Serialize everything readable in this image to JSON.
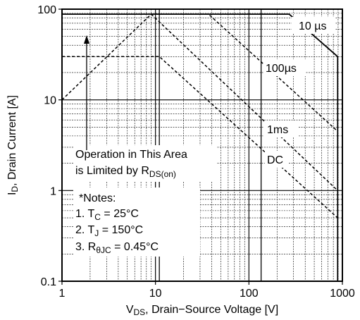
{
  "chart_data": {
    "type": "line",
    "title": "",
    "xscale": "log",
    "yscale": "log",
    "xlim": [
      1,
      1000
    ],
    "ylim": [
      0.1,
      100
    ],
    "grid": true,
    "xlabel": {
      "prefix": "V",
      "sub": "DS",
      "suffix": ", Drain−Source Voltage [V]"
    },
    "ylabel": {
      "prefix": "I",
      "sub": "D",
      "suffix": ", Drain Current [A]"
    },
    "xticks": [
      {
        "value": 1,
        "label": "1"
      },
      {
        "value": 10,
        "label": "10"
      },
      {
        "value": 100,
        "label": "100"
      },
      {
        "value": 1000,
        "label": "1000"
      }
    ],
    "yticks": [
      {
        "value": 0.1,
        "label": "0.1"
      },
      {
        "value": 1,
        "label": "1"
      },
      {
        "value": 10,
        "label": "10"
      },
      {
        "value": 100,
        "label": "100"
      }
    ],
    "series": [
      {
        "name": "10 µs",
        "style": "solid",
        "points": [
          [
            1,
            88
          ],
          [
            270,
            88
          ],
          [
            890,
            30
          ],
          [
            890,
            0.1
          ]
        ]
      },
      {
        "name": "100 µs",
        "style": "dashed",
        "points": [
          [
            1,
            10
          ],
          [
            9,
            88
          ],
          [
            37,
            88
          ],
          [
            890,
            4.5
          ]
        ]
      },
      {
        "name": "1ms",
        "style": "dashed",
        "points": [
          [
            9,
            88
          ],
          [
            890,
            1.0
          ]
        ]
      },
      {
        "name": "DC",
        "style": "dashed",
        "points": [
          [
            1,
            30
          ],
          [
            11,
            30
          ],
          [
            890,
            0.5
          ]
        ]
      }
    ],
    "annotations": {
      "label_10us": {
        "pre": "10",
        "unit": " µs"
      },
      "label_100us": {
        "pre": "100",
        "unit": "µs"
      },
      "label_1ms": "1ms",
      "label_dc": "DC",
      "operation_line1": "Operation in This Area",
      "operation_line2_pre": "is Limited by R",
      "operation_line2_sub": "DS(on)",
      "notes_title": "*Notes:",
      "note1_pre": "1. T",
      "note1_sub": "C",
      "note1_post": " = 25°C",
      "note2_pre": "2. T",
      "note2_sub": "J",
      "note2_post": " = 150°C",
      "note3_pre": "3. R",
      "note3_sub": "θJC",
      "note3_post": " = 0.45°C"
    },
    "colors": {
      "line": "#000000",
      "grid": "#000000",
      "background": "#ffffff"
    }
  }
}
